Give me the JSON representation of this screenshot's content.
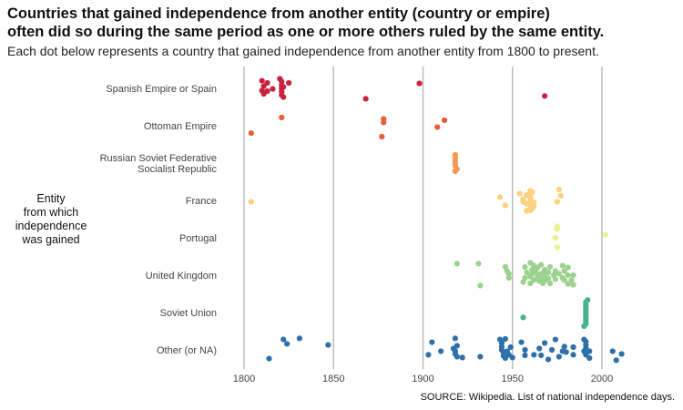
{
  "title": "Countries that gained independence from another entity (country or empire)\noften did so during the same period as one or more others ruled by the same entity.",
  "subtitle": "Each dot below represents a country that gained independence from another entity from 1800 to present.",
  "caption": "SOURCE: Wikipedia. List of national independence days.",
  "chart_data": {
    "type": "scatter",
    "title": "Countries that gained independence from another entity (country or empire) often did so during the same period as one or more others ruled by the same entity.",
    "subtitle": "Each dot below represents a country that gained independence from another entity from 1800 to present.",
    "xlabel": "",
    "ylabel": "Entity\nfrom which\nindependence\nwas gained",
    "xlim": [
      1800,
      2012
    ],
    "xticks": [
      1800,
      1850,
      1900,
      1950,
      2000
    ],
    "grid": "vertical",
    "legend": "none",
    "categories": [
      "Spanish Empire or Spain",
      "Ottoman Empire",
      "Russian Soviet Federative\nSocialist Republic",
      "France",
      "Portugal",
      "United Kingdom",
      "Soviet Union",
      "Other (or NA)"
    ],
    "series": [
      {
        "category": "Spanish Empire or Spain",
        "color": "#c8233f",
        "points": [
          {
            "x": 1810,
            "j": -0.28
          },
          {
            "x": 1811,
            "j": -0.08
          },
          {
            "x": 1810,
            "j": 0.08
          },
          {
            "x": 1811,
            "j": 0.2
          },
          {
            "x": 1813,
            "j": -0.2
          },
          {
            "x": 1813,
            "j": 0.1
          },
          {
            "x": 1816,
            "j": 0.02
          },
          {
            "x": 1820,
            "j": -0.35
          },
          {
            "x": 1821,
            "j": -0.25
          },
          {
            "x": 1821,
            "j": -0.12
          },
          {
            "x": 1821,
            "j": 0.0
          },
          {
            "x": 1821,
            "j": 0.12
          },
          {
            "x": 1821,
            "j": 0.24
          },
          {
            "x": 1822,
            "j": 0.32
          },
          {
            "x": 1822,
            "j": -0.05
          },
          {
            "x": 1825,
            "j": -0.2
          },
          {
            "x": 1868,
            "j": 0.38
          },
          {
            "x": 1898,
            "j": -0.18
          },
          {
            "x": 1968,
            "j": 0.28
          }
        ]
      },
      {
        "category": "Ottoman Empire",
        "color": "#e85d3a",
        "points": [
          {
            "x": 1804,
            "j": 0.27
          },
          {
            "x": 1821,
            "j": -0.3
          },
          {
            "x": 1878,
            "j": -0.25
          },
          {
            "x": 1878,
            "j": -0.12
          },
          {
            "x": 1877,
            "j": 0.4
          },
          {
            "x": 1908,
            "j": 0.05
          },
          {
            "x": 1912,
            "j": -0.2
          }
        ]
      },
      {
        "category": "Russian Soviet Federative\nSocialist Republic",
        "color": "#f59a53",
        "points": [
          {
            "x": 1918,
            "j": -0.3
          },
          {
            "x": 1918,
            "j": -0.2
          },
          {
            "x": 1918,
            "j": -0.1
          },
          {
            "x": 1918,
            "j": 0.0
          },
          {
            "x": 1918,
            "j": 0.1
          },
          {
            "x": 1919,
            "j": 0.22
          },
          {
            "x": 1918,
            "j": 0.3
          }
        ]
      },
      {
        "category": "France",
        "color": "#fdd17f",
        "points": [
          {
            "x": 1804,
            "j": 0.05
          },
          {
            "x": 1943,
            "j": -0.12
          },
          {
            "x": 1946,
            "j": 0.18
          },
          {
            "x": 1954,
            "j": -0.25
          },
          {
            "x": 1956,
            "j": -0.05
          },
          {
            "x": 1956,
            "j": 0.05
          },
          {
            "x": 1958,
            "j": -0.2
          },
          {
            "x": 1958,
            "j": 0.12
          },
          {
            "x": 1958,
            "j": 0.38
          },
          {
            "x": 1960,
            "j": -0.35
          },
          {
            "x": 1960,
            "j": -0.28
          },
          {
            "x": 1960,
            "j": -0.2
          },
          {
            "x": 1960,
            "j": -0.12
          },
          {
            "x": 1960,
            "j": -0.04
          },
          {
            "x": 1960,
            "j": 0.04
          },
          {
            "x": 1960,
            "j": 0.12
          },
          {
            "x": 1960,
            "j": 0.2
          },
          {
            "x": 1960,
            "j": 0.28
          },
          {
            "x": 1960,
            "j": 0.36
          },
          {
            "x": 1961,
            "j": -0.3
          },
          {
            "x": 1961,
            "j": 0.3
          },
          {
            "x": 1962,
            "j": 0.08
          },
          {
            "x": 1962,
            "j": 0.22
          },
          {
            "x": 1976,
            "j": -0.4
          },
          {
            "x": 1975,
            "j": 0.05
          },
          {
            "x": 1977,
            "j": -0.18
          }
        ]
      },
      {
        "category": "Portugal",
        "color": "#e9f28f",
        "points": [
          {
            "x": 1975,
            "j": -0.42
          },
          {
            "x": 1975,
            "j": -0.32
          },
          {
            "x": 1974,
            "j": 0.0
          },
          {
            "x": 1975,
            "j": 0.35
          },
          {
            "x": 2002,
            "j": -0.12
          }
        ]
      },
      {
        "category": "United Kingdom",
        "color": "#9dd28e",
        "points": [
          {
            "x": 1919,
            "j": -0.42
          },
          {
            "x": 1931,
            "j": -0.42
          },
          {
            "x": 1932,
            "j": 0.38
          },
          {
            "x": 1946,
            "j": -0.3
          },
          {
            "x": 1947,
            "j": -0.15
          },
          {
            "x": 1948,
            "j": -0.05
          },
          {
            "x": 1948,
            "j": 0.1
          },
          {
            "x": 1956,
            "j": 0.25
          },
          {
            "x": 1957,
            "j": 0.1
          },
          {
            "x": 1957,
            "j": -0.3
          },
          {
            "x": 1958,
            "j": -0.1
          },
          {
            "x": 1960,
            "j": 0.05
          },
          {
            "x": 1960,
            "j": 0.3
          },
          {
            "x": 1960,
            "j": -0.45
          },
          {
            "x": 1961,
            "j": -0.2
          },
          {
            "x": 1961,
            "j": -0.05
          },
          {
            "x": 1962,
            "j": 0.18
          },
          {
            "x": 1962,
            "j": -0.35
          },
          {
            "x": 1963,
            "j": -0.12
          },
          {
            "x": 1964,
            "j": -0.28
          },
          {
            "x": 1964,
            "j": 0.05
          },
          {
            "x": 1965,
            "j": 0.02
          },
          {
            "x": 1965,
            "j": 0.22
          },
          {
            "x": 1966,
            "j": -0.38
          },
          {
            "x": 1966,
            "j": -0.05
          },
          {
            "x": 1966,
            "j": 0.15
          },
          {
            "x": 1967,
            "j": 0.3
          },
          {
            "x": 1968,
            "j": -0.2
          },
          {
            "x": 1968,
            "j": 0.0
          },
          {
            "x": 1968,
            "j": 0.2
          },
          {
            "x": 1970,
            "j": -0.1
          },
          {
            "x": 1970,
            "j": 0.12
          },
          {
            "x": 1971,
            "j": 0.3
          },
          {
            "x": 1971,
            "j": -0.3
          },
          {
            "x": 1973,
            "j": 0.0
          },
          {
            "x": 1974,
            "j": -0.15
          },
          {
            "x": 1974,
            "j": 0.15
          },
          {
            "x": 1976,
            "j": -0.05
          },
          {
            "x": 1978,
            "j": 0.1
          },
          {
            "x": 1978,
            "j": -0.35
          },
          {
            "x": 1979,
            "j": 0.18
          },
          {
            "x": 1979,
            "j": -0.15
          },
          {
            "x": 1981,
            "j": 0.0
          },
          {
            "x": 1981,
            "j": -0.28
          },
          {
            "x": 1983,
            "j": 0.18
          },
          {
            "x": 1984,
            "j": 0.0
          },
          {
            "x": 1984,
            "j": 0.35
          },
          {
            "x": 1981,
            "j": 0.32
          }
        ]
      },
      {
        "category": "Soviet Union",
        "color": "#48b48e",
        "points": [
          {
            "x": 1956,
            "j": 0.18
          },
          {
            "x": 1991,
            "j": -0.38
          },
          {
            "x": 1991,
            "j": -0.28
          },
          {
            "x": 1991,
            "j": -0.18
          },
          {
            "x": 1991,
            "j": -0.08
          },
          {
            "x": 1991,
            "j": 0.02
          },
          {
            "x": 1991,
            "j": 0.12
          },
          {
            "x": 1991,
            "j": 0.22
          },
          {
            "x": 1991,
            "j": 0.32
          },
          {
            "x": 1991,
            "j": 0.42
          },
          {
            "x": 1990,
            "j": 0.5
          },
          {
            "x": 1992,
            "j": -0.46
          }
        ]
      },
      {
        "category": "Other (or NA)",
        "color": "#2f70aa",
        "points": [
          {
            "x": 1814,
            "j": 0.32
          },
          {
            "x": 1822,
            "j": -0.38
          },
          {
            "x": 1824,
            "j": -0.22
          },
          {
            "x": 1831,
            "j": -0.42
          },
          {
            "x": 1847,
            "j": -0.18
          },
          {
            "x": 1903,
            "j": 0.18
          },
          {
            "x": 1905,
            "j": -0.28
          },
          {
            "x": 1910,
            "j": 0.05
          },
          {
            "x": 1918,
            "j": -0.42
          },
          {
            "x": 1917,
            "j": -0.05
          },
          {
            "x": 1918,
            "j": 0.05
          },
          {
            "x": 1918,
            "j": 0.15
          },
          {
            "x": 1919,
            "j": 0.25
          },
          {
            "x": 1919,
            "j": -0.15
          },
          {
            "x": 1922,
            "j": 0.28
          },
          {
            "x": 1932,
            "j": 0.25
          },
          {
            "x": 1943,
            "j": -0.38
          },
          {
            "x": 1944,
            "j": -0.25
          },
          {
            "x": 1944,
            "j": -0.12
          },
          {
            "x": 1944,
            "j": 0.0
          },
          {
            "x": 1945,
            "j": 0.1
          },
          {
            "x": 1945,
            "j": 0.22
          },
          {
            "x": 1946,
            "j": -0.4
          },
          {
            "x": 1946,
            "j": 0.3
          },
          {
            "x": 1947,
            "j": 0.05
          },
          {
            "x": 1948,
            "j": 0.18
          },
          {
            "x": 1949,
            "j": -0.1
          },
          {
            "x": 1950,
            "j": 0.28
          },
          {
            "x": 1955,
            "j": -0.28
          },
          {
            "x": 1957,
            "j": 0.0
          },
          {
            "x": 1957,
            "j": 0.2
          },
          {
            "x": 1962,
            "j": 0.18
          },
          {
            "x": 1965,
            "j": -0.05
          },
          {
            "x": 1966,
            "j": 0.2
          },
          {
            "x": 1968,
            "j": -0.25
          },
          {
            "x": 1970,
            "j": 0.35
          },
          {
            "x": 1972,
            "j": 0.0
          },
          {
            "x": 1974,
            "j": -0.38
          },
          {
            "x": 1976,
            "j": 0.25
          },
          {
            "x": 1978,
            "j": 0.05
          },
          {
            "x": 1979,
            "j": -0.12
          },
          {
            "x": 1980,
            "j": 0.08
          },
          {
            "x": 1984,
            "j": 0.18
          },
          {
            "x": 1984,
            "j": -0.1
          },
          {
            "x": 1990,
            "j": -0.38
          },
          {
            "x": 1990,
            "j": 0.05
          },
          {
            "x": 1991,
            "j": -0.3
          },
          {
            "x": 1991,
            "j": -0.18
          },
          {
            "x": 1991,
            "j": -0.06
          },
          {
            "x": 1991,
            "j": 0.06
          },
          {
            "x": 1991,
            "j": 0.18
          },
          {
            "x": 1993,
            "j": 0.05
          },
          {
            "x": 1993,
            "j": 0.3
          },
          {
            "x": 2006,
            "j": 0.05
          },
          {
            "x": 2008,
            "j": 0.38
          },
          {
            "x": 2011,
            "j": 0.15
          }
        ]
      }
    ]
  }
}
